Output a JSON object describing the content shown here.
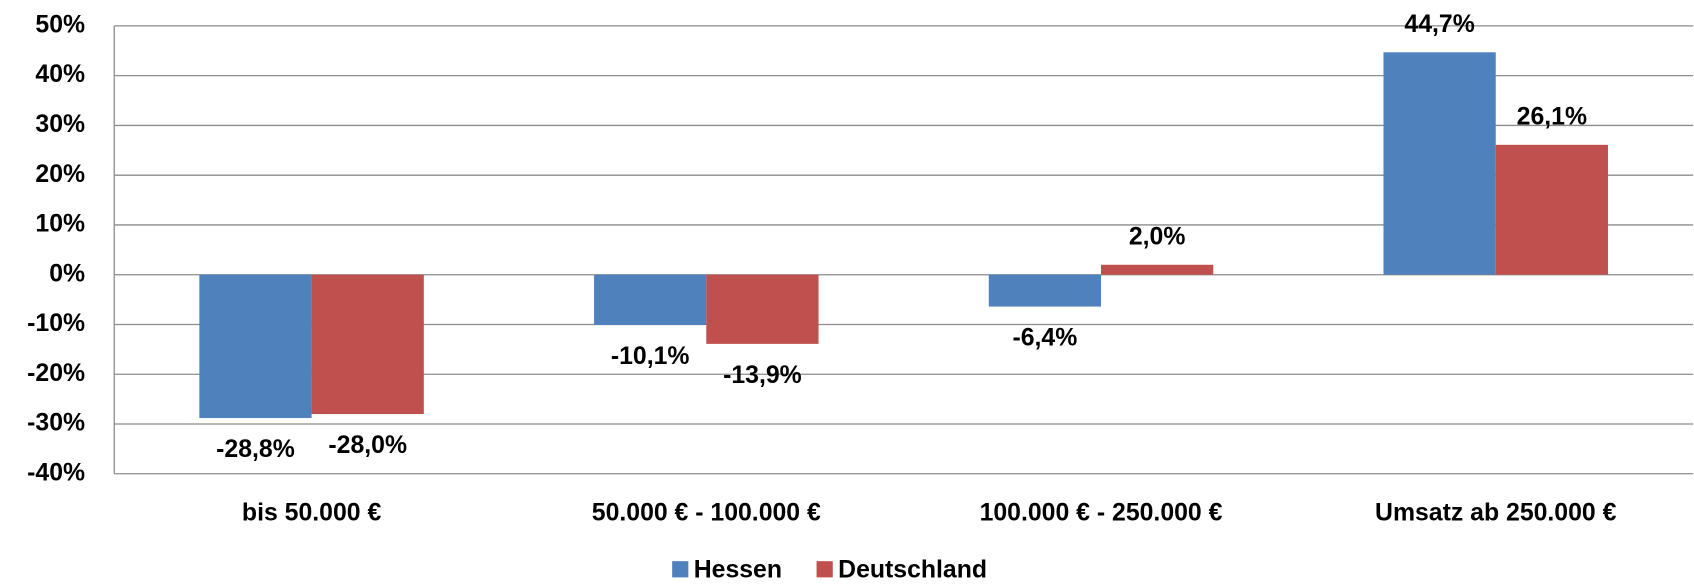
{
  "chart_data": {
    "type": "bar",
    "categories": [
      "bis 50.000 €",
      "50.000 € - 100.000 €",
      "100.000 € - 250.000 €",
      "Umsatz ab 250.000 €"
    ],
    "series": [
      {
        "name": "Hessen",
        "color": "#4f81bd",
        "values": [
          -28.8,
          -10.1,
          -6.4,
          44.7
        ],
        "value_labels": [
          "-28,8%",
          "-10,1%",
          "-6,4%",
          "44,7%"
        ]
      },
      {
        "name": "Deutschland",
        "color": "#c0504d",
        "values": [
          -28.0,
          -13.9,
          2.0,
          26.1
        ],
        "value_labels": [
          "-28,0%",
          "-13,9%",
          "2,0%",
          "26,1%"
        ]
      }
    ],
    "ylim": [
      -40,
      50
    ],
    "yticks": [
      {
        "value": -40,
        "label": "-40%"
      },
      {
        "value": -30,
        "label": "-30%"
      },
      {
        "value": -20,
        "label": "-20%"
      },
      {
        "value": -10,
        "label": "-10%"
      },
      {
        "value": 0,
        "label": "0%"
      },
      {
        "value": 10,
        "label": "10%"
      },
      {
        "value": 20,
        "label": "20%"
      },
      {
        "value": 30,
        "label": "30%"
      },
      {
        "value": 40,
        "label": "40%"
      },
      {
        "value": 50,
        "label": "50%"
      }
    ],
    "grid": true,
    "legend": "bottom"
  }
}
